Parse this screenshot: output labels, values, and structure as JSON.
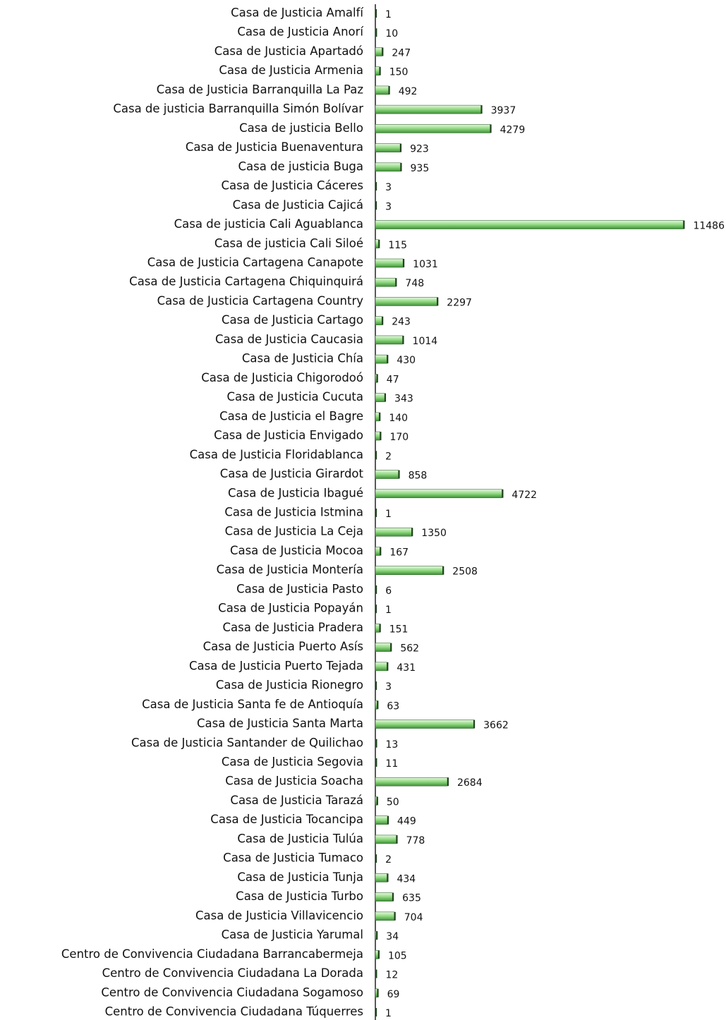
{
  "chart_data": {
    "type": "bar",
    "orientation": "horizontal",
    "categories": [
      "Casa de Justicia Amalfí",
      "Casa de Justicia Anorí",
      "Casa de Justicia Apartadó",
      "Casa de Justicia Armenia",
      "Casa de Justicia Barranquilla La Paz",
      "Casa de justicia Barranquilla Simón Bolívar",
      "Casa de justicia Bello",
      "Casa de Justicia Buenaventura",
      "Casa de justicia Buga",
      "Casa de Justicia Cáceres",
      "Casa de Justicia Cajicá",
      "Casa de justicia Cali Aguablanca",
      "Casa de justicia Cali Siloé",
      "Casa de Justicia Cartagena Canapote",
      "Casa de Justicia Cartagena Chiquinquirá",
      "Casa de Justicia Cartagena Country",
      "Casa de Justicia Cartago",
      "Casa de Justicia Caucasia",
      "Casa de Justicia Chía",
      "Casa de Justicia Chigorodoó",
      "Casa de Justicia Cucuta",
      "Casa de Justicia el Bagre",
      "Casa de Justicia Envigado",
      "Casa de Justicia Floridablanca",
      "Casa de Justicia Girardot",
      "Casa de Justicia Ibagué",
      "Casa de Justicia Istmina",
      "Casa de Justicia La Ceja",
      "Casa de Justicia Mocoa",
      "Casa de Justicia Montería",
      "Casa de Justicia Pasto",
      "Casa de Justicia Popayán",
      "Casa de Justicia Pradera",
      "Casa de Justicia Puerto Asís",
      "Casa de Justicia Puerto Tejada",
      "Casa de Justicia Rionegro",
      "Casa de Justicia Santa fe de Antioquía",
      "Casa de Justicia Santa Marta",
      "Casa de Justicia Santander de Quilichao",
      "Casa de Justicia Segovia",
      "Casa de Justicia Soacha",
      "Casa de Justicia Tarazá",
      "Casa de Justicia Tocancipa",
      "Casa de Justicia Tulúa",
      "Casa de Justicia Tumaco",
      "Casa de Justicia Tunja",
      "Casa de Justicia Turbo",
      "Casa de Justicia Villavicencio",
      "Casa de Justicia Yarumal",
      "Centro de Convivencia Ciudadana Barrancabermeja",
      "Centro de Convivencia Ciudadana La Dorada",
      "Centro de Convivencia Ciudadana Sogamoso",
      "Centro de Convivencia Ciudadana Túquerres"
    ],
    "values": [
      1,
      10,
      247,
      150,
      492,
      3937,
      4279,
      923,
      935,
      3,
      3,
      11486,
      115,
      1031,
      748,
      2297,
      243,
      1014,
      430,
      47,
      343,
      140,
      170,
      2,
      858,
      4722,
      1,
      1350,
      167,
      2508,
      6,
      1,
      151,
      562,
      431,
      3,
      63,
      3662,
      13,
      11,
      2684,
      50,
      449,
      778,
      2,
      434,
      635,
      704,
      34,
      105,
      12,
      69,
      1
    ],
    "color": "#7ccf6e",
    "xlim": [
      0,
      11500
    ]
  }
}
